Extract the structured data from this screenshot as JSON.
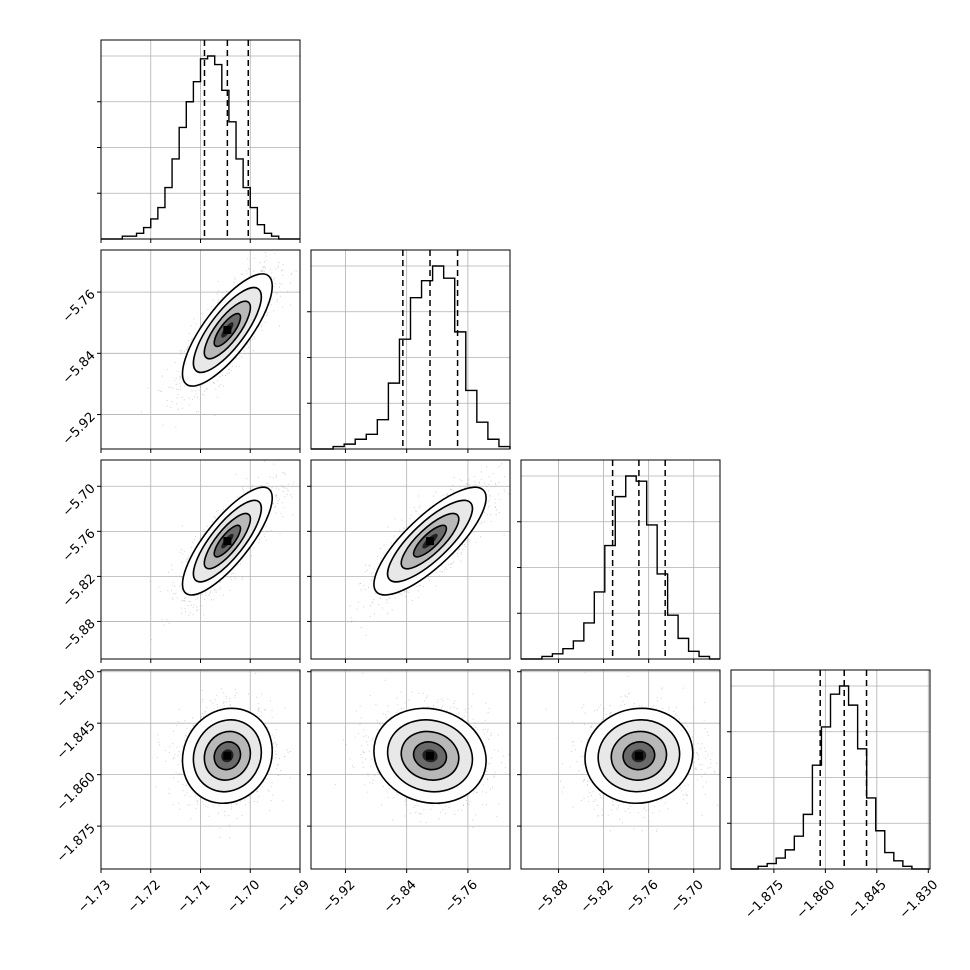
{
  "chart_data": {
    "type": "corner",
    "grid": true,
    "parameters": [
      {
        "index": 0,
        "range": [
          -1.73,
          -1.69
        ],
        "quantiles": [
          -1.7092,
          -1.7046,
          -1.7004
        ],
        "ticks": [
          "−1.73",
          "−1.72",
          "−1.71",
          "−1.70",
          "−1.69"
        ],
        "tick_values": [
          -1.73,
          -1.72,
          -1.71,
          -1.7,
          -1.69
        ],
        "hist_counts": [
          0,
          0,
          0,
          1,
          1,
          2,
          4,
          7,
          11,
          18,
          28,
          39,
          48,
          55,
          63,
          64,
          61,
          52,
          41,
          28,
          18,
          11,
          5,
          2,
          1,
          0,
          0,
          0
        ]
      },
      {
        "index": 1,
        "range": [
          -5.965,
          -5.705
        ],
        "quantiles": [
          -5.845,
          -5.8095,
          -5.7735
        ],
        "ticks": [
          "−5.92",
          "−5.84",
          "−5.76"
        ],
        "tick_values": [
          -5.92,
          -5.84,
          -5.76
        ],
        "hist_counts": [
          0,
          0,
          1,
          2,
          4,
          6,
          12,
          27,
          45,
          62,
          69,
          75,
          70,
          48,
          24,
          11,
          4,
          1
        ]
      },
      {
        "index": 2,
        "range": [
          -5.93,
          -5.665
        ],
        "quantiles": [
          -5.808,
          -5.773,
          -5.738
        ],
        "ticks": [
          "−5.88",
          "−5.82",
          "−5.76",
          "−5.70"
        ],
        "tick_values": [
          -5.88,
          -5.82,
          -5.76,
          -5.7
        ],
        "hist_counts": [
          0,
          0,
          1,
          2,
          4,
          7,
          14,
          26,
          44,
          63,
          71,
          69,
          52,
          33,
          17,
          8,
          3,
          1,
          0
        ]
      },
      {
        "index": 3,
        "range": [
          -1.8875,
          -1.8295
        ],
        "quantiles": [
          -1.8615,
          -1.8545,
          -1.848
        ],
        "ticks": [
          "−1.875",
          "−1.860",
          "−1.845",
          "−1.830"
        ],
        "tick_values": [
          -1.875,
          -1.86,
          -1.845,
          -1.83
        ],
        "hist_counts": [
          0,
          0,
          0,
          1,
          2,
          4,
          7,
          12,
          20,
          38,
          52,
          64,
          67,
          60,
          44,
          26,
          14,
          6,
          3,
          1,
          0,
          0
        ]
      }
    ],
    "left_axis_ticks": {
      "1": [
        "−5.76",
        "−5.84",
        "−5.92"
      ],
      "2": [
        "−5.70",
        "−5.76",
        "−5.82",
        "−5.88"
      ],
      "3": [
        "−1.830",
        "−1.845",
        "−1.860",
        "−1.875"
      ]
    },
    "correlations": {
      "1,0": 0.78,
      "2,0": 0.8,
      "2,1": 0.8,
      "3,0": 0.1,
      "3,1": -0.1,
      "3,2": 0.05
    },
    "colors": {
      "line": "#000000",
      "points": "#a9a9a9",
      "grid": "#b0b0b0",
      "density_max": "#000000"
    }
  }
}
